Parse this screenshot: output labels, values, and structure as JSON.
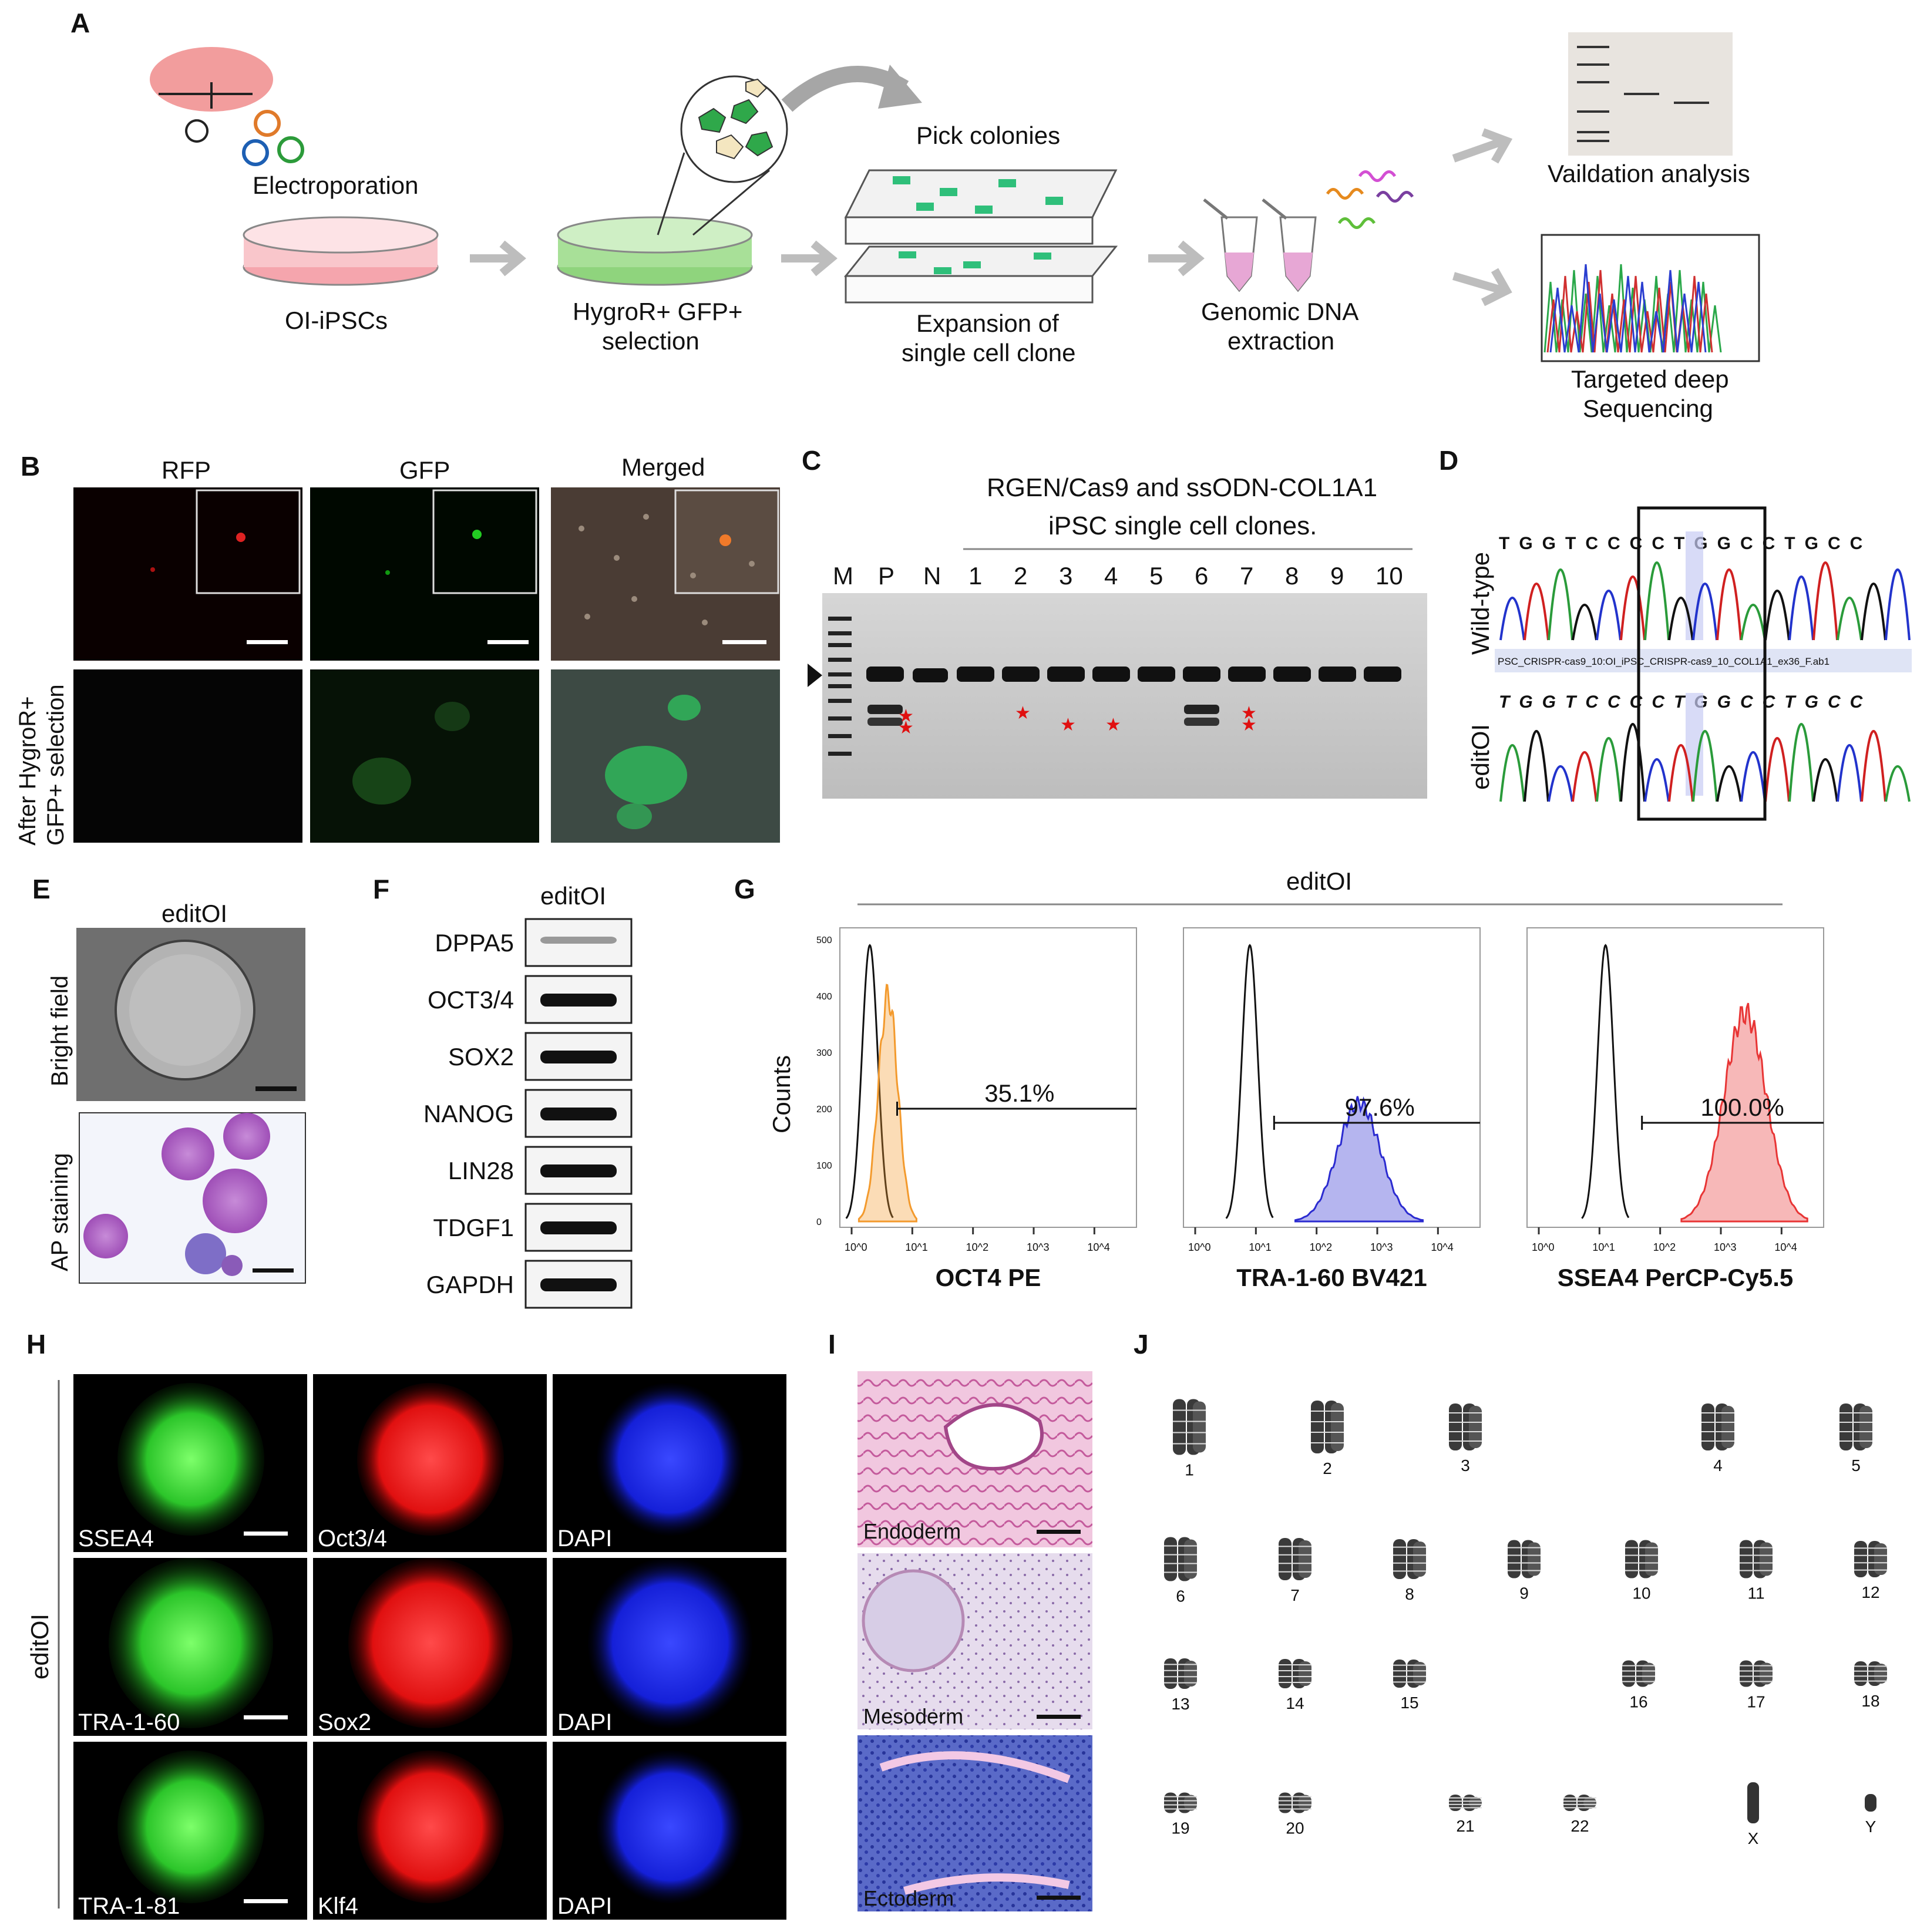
{
  "panels": {
    "A": {
      "label": "A",
      "steps": {
        "electroporation": "Electroporation",
        "oi_ipscs": "OI-iPSCs",
        "selection_l1": "HygroR+ GFP+",
        "selection_l2": "selection",
        "pick_colonies": "Pick colonies",
        "expansion_l1": "Expansion of",
        "expansion_l2": "single cell clone",
        "gdna_l1": "Genomic DNA",
        "gdna_l2": "extraction",
        "validation": "Vaildation analysis",
        "deepseq_l1": "Targeted deep",
        "deepseq_l2": "Sequencing"
      }
    },
    "B": {
      "label": "B",
      "columns": [
        "RFP",
        "GFP",
        "Merged"
      ],
      "row_label_l1": "After HygroR+",
      "row_label_l2": "GFP+ selection"
    },
    "C": {
      "label": "C",
      "title_l1": "RGEN/Cas9 and ssODN-COL1A1",
      "title_l2": "iPSC single cell clones.",
      "lanes": [
        "M",
        "P",
        "N",
        "1",
        "2",
        "3",
        "4",
        "5",
        "6",
        "7",
        "8",
        "9",
        "10"
      ]
    },
    "D": {
      "label": "D",
      "row1": "Wild-type",
      "row2": "editOI",
      "seq_wt": "TGGTCCCCTGGCCTGCC",
      "seq_edit": "TGGTCCCCTGGCCTGCC",
      "file_label": "PSC_CRISPR-cas9_10:OI_iPSC_CRISPR-cas9_10_COL1A1_ex36_F.ab1"
    },
    "E": {
      "label": "E",
      "title": "editOI",
      "row1": "Bright field",
      "row2": "AP staining"
    },
    "F": {
      "label": "F",
      "title": "editOI",
      "genes": [
        "DPPA5",
        "OCT3/4",
        "SOX2",
        "NANOG",
        "LIN28",
        "TDGF1",
        "GAPDH"
      ]
    },
    "G": {
      "label": "G",
      "title": "editOI",
      "ylabel": "Counts"
    },
    "H": {
      "label": "H",
      "row_label": "editOI",
      "rows": [
        [
          "SSEA4",
          "Oct3/4",
          "DAPI"
        ],
        [
          "TRA-1-60",
          "Sox2",
          "DAPI"
        ],
        [
          "TRA-1-81",
          "Klf4",
          "DAPI"
        ]
      ]
    },
    "I": {
      "label": "I",
      "tissues": [
        "Endoderm",
        "Mesoderm",
        "Ectoderm"
      ]
    },
    "J": {
      "label": "J",
      "chromosomes": [
        "1",
        "2",
        "3",
        "4",
        "5",
        "6",
        "7",
        "8",
        "9",
        "10",
        "11",
        "12",
        "13",
        "14",
        "15",
        "16",
        "17",
        "18",
        "19",
        "20",
        "21",
        "22",
        "X",
        "Y"
      ]
    }
  },
  "chart_data": [
    {
      "type": "histogram",
      "xlabel": "OCT4 PE",
      "ylabel": "Counts",
      "gate_label": "35.1%",
      "gate_value": 35.1,
      "x_scale": "log",
      "xlim": [
        1,
        100000
      ],
      "ylim": [
        0,
        500
      ],
      "yticks": [
        0,
        100,
        200,
        300,
        400,
        500
      ],
      "xticks": [
        "10^0",
        "10^1",
        "10^2",
        "10^3",
        "10^4"
      ],
      "control_peak_log10": 0.3,
      "sample_peak_log10": 0.6,
      "control_peak_counts": 490,
      "sample_peak_counts": 400,
      "sample_color": "#f39a2d"
    },
    {
      "type": "histogram",
      "xlabel": "TRA-1-60 BV421",
      "gate_label": "97.6%",
      "gate_value": 97.6,
      "x_scale": "log",
      "xticks": [
        "10^0",
        "10^1",
        "10^2",
        "10^3",
        "10^4"
      ],
      "control_peak_log10": 0.9,
      "sample_peak_log10": 2.7,
      "control_peak_counts": 490,
      "sample_peak_counts": 210,
      "sample_color": "#2b2bd0"
    },
    {
      "type": "histogram",
      "xlabel": "SSEA4 PerCP-Cy5.5",
      "gate_label": "100.0%",
      "gate_value": 100.0,
      "x_scale": "log",
      "xticks": [
        "10^0",
        "10^1",
        "10^2",
        "10^3",
        "10^4"
      ],
      "control_peak_log10": 1.1,
      "sample_peak_log10": 3.4,
      "control_peak_counts": 490,
      "sample_peak_counts": 370,
      "sample_color": "#e83535"
    }
  ]
}
